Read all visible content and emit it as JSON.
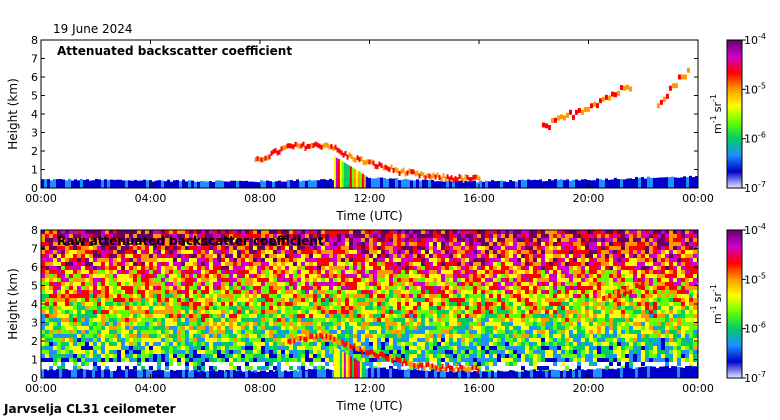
{
  "date": "19 June 2024",
  "footer": "Jarvselja CL31 ceilometer",
  "colors": {
    "scale": [
      "#e8e6ff",
      "#0000cc",
      "#1e90ff",
      "#00cc66",
      "#66ff00",
      "#ffff00",
      "#ff9900",
      "#ff0000",
      "#cc00cc",
      "#660066"
    ]
  },
  "chart_data": [
    {
      "type": "heatmap",
      "title": "Attenuated backscatter coefficient",
      "xlabel": "Time (UTC)",
      "ylabel": "Height (km)",
      "x_ticks": [
        "00:00",
        "04:00",
        "08:00",
        "12:00",
        "16:00",
        "20:00",
        "00:00"
      ],
      "y_ticks": [
        "0",
        "1",
        "2",
        "3",
        "4",
        "5",
        "6",
        "7",
        "8"
      ],
      "xlim_hours": [
        0,
        24
      ],
      "ylim_km": [
        0,
        8
      ],
      "colorbar": {
        "scale": "log",
        "range": [
          1e-07,
          0.0001
        ],
        "ticks": [
          {
            "base": "10",
            "exp": "-4"
          },
          {
            "base": "10",
            "exp": "-5"
          },
          {
            "base": "10",
            "exp": "-6"
          },
          {
            "base": "10",
            "exp": "-7"
          }
        ],
        "unit": {
          "m": "m",
          "m_exp": "-1",
          "sr": "sr",
          "sr_exp": "-1"
        }
      },
      "features": [
        {
          "kind": "boundary_layer",
          "t": [
            0,
            4,
            8,
            10.5,
            12,
            14,
            16,
            18,
            20,
            22,
            24
          ],
          "top_km": [
            0.4,
            0.35,
            0.3,
            0.4,
            0.5,
            0.35,
            0.3,
            0.35,
            0.4,
            0.5,
            0.55
          ]
        },
        {
          "kind": "cloud_layer",
          "t": [
            7.8,
            9,
            10.5,
            11,
            12,
            13,
            14,
            15,
            16
          ],
          "z_km": [
            1.4,
            2.2,
            2.3,
            1.8,
            1.3,
            0.9,
            0.6,
            0.5,
            0.45
          ]
        },
        {
          "kind": "rain_shaft",
          "t": [
            10.7,
            11.8
          ],
          "z_km": [
            0,
            1.7
          ]
        },
        {
          "kind": "elevated_cloud",
          "t": [
            18.3,
            21.5
          ],
          "z_km": [
            3.2,
            5.5
          ]
        },
        {
          "kind": "elevated_cloud",
          "t": [
            22.5,
            23.7
          ],
          "z_km": [
            4.6,
            6.5
          ]
        }
      ]
    },
    {
      "type": "heatmap",
      "title": "Raw attenuated backscatter coefficient",
      "xlabel": "Time (UTC)",
      "ylabel": "Height (km)",
      "x_ticks": [
        "00:00",
        "04:00",
        "08:00",
        "12:00",
        "16:00",
        "20:00",
        "00:00"
      ],
      "y_ticks": [
        "0",
        "1",
        "2",
        "3",
        "4",
        "5",
        "6",
        "7",
        "8"
      ],
      "xlim_hours": [
        0,
        24
      ],
      "ylim_km": [
        0,
        8
      ],
      "colorbar": {
        "scale": "log",
        "range": [
          1e-07,
          0.0001
        ],
        "ticks": [
          {
            "base": "10",
            "exp": "-4"
          },
          {
            "base": "10",
            "exp": "-5"
          },
          {
            "base": "10",
            "exp": "-6"
          },
          {
            "base": "10",
            "exp": "-7"
          }
        ],
        "unit": {
          "m": "m",
          "m_exp": "-1",
          "sr": "sr",
          "sr_exp": "-1"
        }
      },
      "features": [
        {
          "kind": "noise_field",
          "t": [
            0,
            24
          ],
          "z_km": [
            0,
            8
          ]
        },
        {
          "kind": "boundary_layer",
          "t": [
            0,
            4,
            8,
            10.5,
            12,
            14,
            16,
            18,
            20,
            22,
            24
          ],
          "top_km": [
            0.4,
            0.35,
            0.3,
            0.4,
            0.5,
            0.35,
            0.3,
            0.35,
            0.4,
            0.5,
            0.55
          ]
        },
        {
          "kind": "cloud_layer",
          "t": [
            9,
            10.5,
            11,
            12,
            13,
            14,
            15,
            16
          ],
          "z_km": [
            2.0,
            2.2,
            1.8,
            1.3,
            0.9,
            0.6,
            0.5,
            0.45
          ]
        },
        {
          "kind": "rain_shaft",
          "t": [
            10.7,
            11.8
          ],
          "z_km": [
            0,
            1.7
          ]
        },
        {
          "kind": "elevated_cloud",
          "t": [
            20.5,
            22
          ],
          "z_km": [
            4.3,
            5.0
          ]
        }
      ]
    }
  ]
}
